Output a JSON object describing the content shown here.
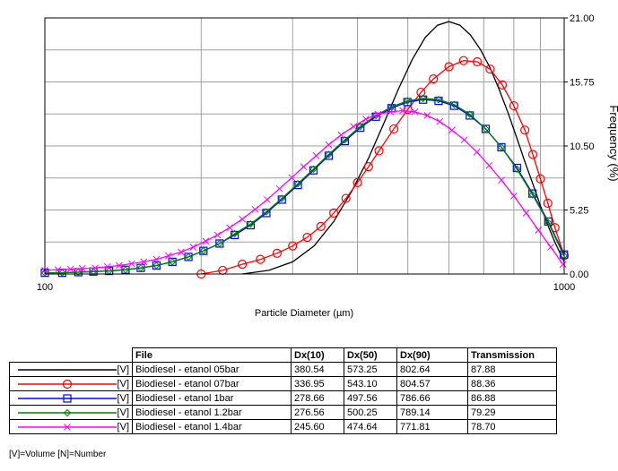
{
  "chart_data": {
    "type": "line",
    "xlabel": "Particle Diameter (µm)",
    "ylabel": "Frequency (%)",
    "x_scale": "log",
    "xlim": [
      100,
      1000
    ],
    "ylim": [
      0,
      21
    ],
    "x_tick_labels": [
      "100",
      "1000"
    ],
    "y_tick_labels": [
      "21.00",
      "15.75",
      "10.50",
      "5.25",
      "0.00"
    ],
    "y_ticks": [
      21,
      15.75,
      10.5,
      5.25,
      0
    ],
    "grid": true,
    "y_axis_side": "right",
    "series": [
      {
        "name": "Biodiesel - etanol 05bar",
        "color": "#000000",
        "marker": "none",
        "x": [
          240,
          270,
          300,
          330,
          360,
          390,
          420,
          450,
          480,
          510,
          540,
          570,
          600,
          630,
          660,
          690,
          720,
          750,
          780,
          810,
          840,
          870,
          900,
          930,
          960,
          1000
        ],
        "y": [
          0,
          0.3,
          1.0,
          2.3,
          4.3,
          6.8,
          9.5,
          12.4,
          15.2,
          17.6,
          19.4,
          20.4,
          20.7,
          20.4,
          19.6,
          18.4,
          16.9,
          15.1,
          13.2,
          11.2,
          9.2,
          7.4,
          5.6,
          4.0,
          2.6,
          1.0
        ]
      },
      {
        "name": "Biodiesel - etanol 07bar",
        "color": "#ff0000",
        "marker": "circle",
        "x": [
          200,
          220,
          240,
          260,
          280,
          300,
          320,
          340,
          360,
          380,
          400,
          420,
          440,
          470,
          500,
          530,
          560,
          600,
          640,
          680,
          720,
          760,
          800,
          840,
          870,
          900,
          930,
          960,
          1000
        ],
        "y": [
          0,
          0.3,
          0.8,
          1.2,
          1.7,
          2.3,
          3.0,
          3.9,
          5.0,
          6.2,
          7.5,
          8.8,
          10.1,
          11.9,
          13.5,
          14.9,
          16.0,
          17.0,
          17.5,
          17.4,
          16.8,
          15.5,
          13.8,
          11.8,
          9.8,
          7.8,
          5.8,
          3.8,
          1.5
        ]
      },
      {
        "name": "Biodiesel - etanol 1bar",
        "color": "#0000ff",
        "marker": "square",
        "x": [
          100,
          108,
          116,
          124,
          133,
          143,
          153,
          164,
          176,
          189,
          202,
          217,
          232,
          249,
          267,
          286,
          307,
          329,
          352,
          378,
          405,
          434,
          465,
          499,
          535,
          573,
          614,
          658,
          706,
          757,
          811,
          869,
          932,
          999
        ],
        "y": [
          0.1,
          0.1,
          0.15,
          0.2,
          0.25,
          0.35,
          0.5,
          0.7,
          1.0,
          1.4,
          1.9,
          2.5,
          3.2,
          4.0,
          5.0,
          6.1,
          7.3,
          8.5,
          9.7,
          10.9,
          12.0,
          12.9,
          13.6,
          14.1,
          14.3,
          14.2,
          13.8,
          13.0,
          11.9,
          10.4,
          8.7,
          6.6,
          4.3,
          1.6
        ]
      },
      {
        "name": "Biodiesel - etanol 1.2bar",
        "color": "#008000",
        "marker": "diamond",
        "x": [
          100,
          108,
          116,
          124,
          133,
          143,
          153,
          164,
          176,
          189,
          202,
          217,
          232,
          249,
          267,
          286,
          307,
          329,
          352,
          378,
          405,
          434,
          465,
          499,
          535,
          573,
          614,
          658,
          706,
          757,
          811,
          869,
          932,
          999
        ],
        "y": [
          0.1,
          0.1,
          0.15,
          0.2,
          0.25,
          0.35,
          0.5,
          0.7,
          1.0,
          1.4,
          1.9,
          2.5,
          3.3,
          4.1,
          5.1,
          6.2,
          7.4,
          8.6,
          9.8,
          11.0,
          12.1,
          13.0,
          13.7,
          14.2,
          14.4,
          14.3,
          13.9,
          13.1,
          11.9,
          10.4,
          8.6,
          6.5,
          4.2,
          1.5
        ]
      },
      {
        "name": "Biodiesel - etanol 1.4bar",
        "color": "#ff00ff",
        "marker": "x",
        "x": [
          100,
          106,
          112,
          118,
          125,
          132,
          139,
          147,
          155,
          164,
          173,
          183,
          193,
          204,
          215,
          227,
          240,
          254,
          268,
          283,
          299,
          315,
          333,
          352,
          372,
          393,
          415,
          438,
          463,
          489,
          516,
          545,
          576,
          608,
          642,
          679,
          717,
          757,
          800,
          845,
          892,
          942,
          995
        ],
        "y": [
          0.3,
          0.35,
          0.4,
          0.45,
          0.5,
          0.6,
          0.7,
          0.85,
          1.0,
          1.2,
          1.5,
          1.8,
          2.2,
          2.7,
          3.2,
          3.8,
          4.5,
          5.3,
          6.1,
          7.0,
          7.9,
          8.8,
          9.7,
          10.6,
          11.4,
          12.1,
          12.7,
          13.1,
          13.3,
          13.4,
          13.3,
          13.0,
          12.5,
          11.8,
          11.0,
          10.0,
          8.9,
          7.7,
          6.4,
          5.0,
          3.6,
          2.2,
          0.8
        ]
      }
    ]
  },
  "table": {
    "headers": [
      "File",
      "Dx(10)",
      "Dx(50)",
      "Dx(90)",
      "Transmission"
    ],
    "rows": [
      {
        "tag": "[V]",
        "file": "Biodiesel - etanol 05bar",
        "dx10": "380.54",
        "dx50": "573.25",
        "dx90": "802.64",
        "transmission": "87.88",
        "color": "#000000",
        "marker": "none"
      },
      {
        "tag": "[V]",
        "file": "Biodiesel - etanol 07bar",
        "dx10": "336.95",
        "dx50": "543.10",
        "dx90": "804.57",
        "transmission": "88.36",
        "color": "#ff0000",
        "marker": "circle"
      },
      {
        "tag": "[V]",
        "file": "Biodiesel - etanol 1bar",
        "dx10": "278.66",
        "dx50": "497.56",
        "dx90": "786.66",
        "transmission": "86.88",
        "color": "#0000ff",
        "marker": "square"
      },
      {
        "tag": "[V]",
        "file": "Biodiesel - etanol 1.2bar",
        "dx10": "276.56",
        "dx50": "500.25",
        "dx90": "789.14",
        "transmission": "79.29",
        "color": "#008000",
        "marker": "diamond"
      },
      {
        "tag": "[V]",
        "file": "Biodiesel - etanol 1.4bar",
        "dx10": "245.60",
        "dx50": "474.64",
        "dx90": "771.81",
        "transmission": "78.70",
        "color": "#ff00ff",
        "marker": "x"
      }
    ]
  },
  "footnote": "[V]=Volume [N]=Number"
}
